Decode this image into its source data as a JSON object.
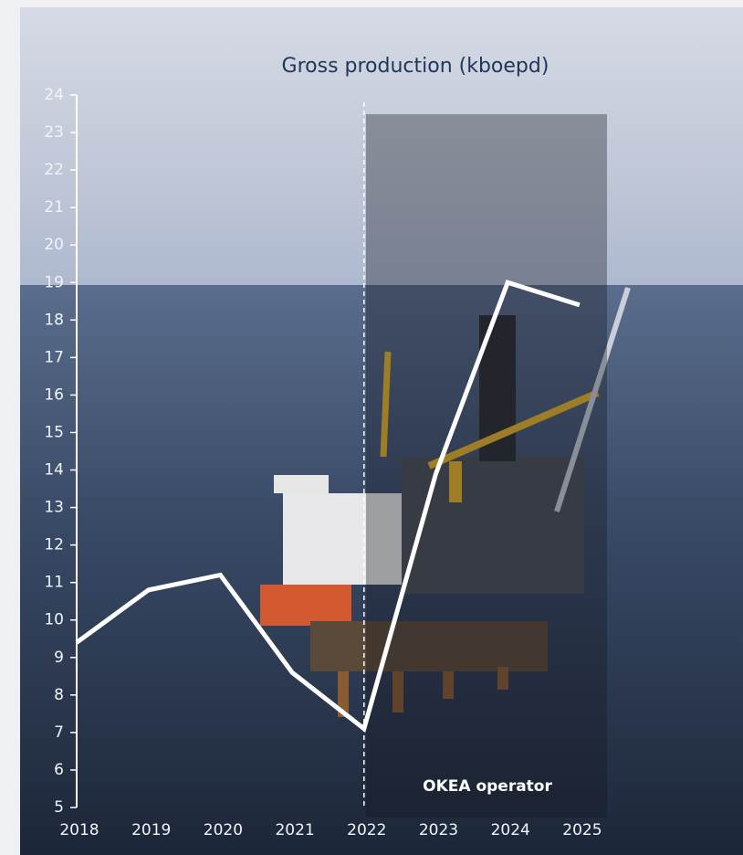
{
  "chart_data": {
    "type": "line",
    "title": "Gross production (kboepd)",
    "categories": [
      "2018",
      "2019",
      "2020",
      "2021",
      "2022",
      "2023",
      "2024",
      "2025"
    ],
    "values": [
      9.4,
      10.8,
      11.2,
      8.6,
      7.1,
      13.9,
      19.0,
      18.4
    ],
    "color": "#ffffff",
    "ylim": [
      5,
      24
    ],
    "yticks": [
      5,
      6,
      7,
      8,
      9,
      10,
      11,
      12,
      13,
      14,
      15,
      16,
      17,
      18,
      19,
      20,
      21,
      22,
      23,
      24
    ],
    "grid": false,
    "annotation": {
      "text": "OKEA operator",
      "x": "2022"
    }
  }
}
